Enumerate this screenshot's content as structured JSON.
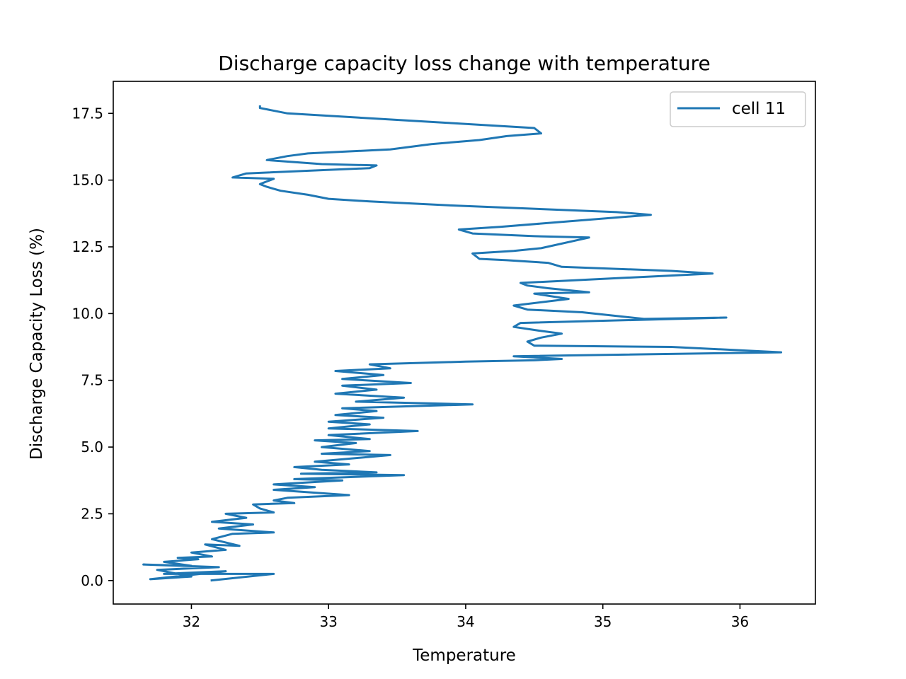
{
  "chart_data": {
    "type": "line",
    "title": "Discharge capacity loss change with temperature",
    "xlabel": "Temperature",
    "ylabel": "Discharge Capacity Loss (%)",
    "xlim": [
      31.43,
      36.55
    ],
    "ylim": [
      -0.88,
      18.7
    ],
    "xticks": [
      32,
      33,
      34,
      35,
      36
    ],
    "xtick_labels": [
      "32",
      "33",
      "34",
      "35",
      "36"
    ],
    "yticks": [
      0.0,
      2.5,
      5.0,
      7.5,
      10.0,
      12.5,
      15.0,
      17.5
    ],
    "ytick_labels": [
      "0.0",
      "2.5",
      "5.0",
      "7.5",
      "10.0",
      "12.5",
      "15.0",
      "17.5"
    ],
    "grid": false,
    "legend_position": "upper right",
    "series_color": "#1f77b4",
    "series": [
      {
        "name": "cell 11",
        "color": "#1f77b4",
        "points": [
          [
            32.14,
            0.0
          ],
          [
            32.6,
            0.25
          ],
          [
            31.8,
            0.25
          ],
          [
            32.25,
            0.35
          ],
          [
            31.7,
            0.05
          ],
          [
            32.0,
            0.15
          ],
          [
            31.75,
            0.4
          ],
          [
            32.2,
            0.5
          ],
          [
            31.65,
            0.6
          ],
          [
            32.0,
            0.55
          ],
          [
            31.8,
            0.7
          ],
          [
            32.05,
            0.8
          ],
          [
            31.9,
            0.85
          ],
          [
            32.15,
            0.9
          ],
          [
            32.0,
            1.05
          ],
          [
            32.25,
            1.15
          ],
          [
            32.1,
            1.35
          ],
          [
            32.35,
            1.3
          ],
          [
            32.15,
            1.55
          ],
          [
            32.3,
            1.75
          ],
          [
            32.6,
            1.8
          ],
          [
            32.2,
            1.95
          ],
          [
            32.45,
            2.1
          ],
          [
            32.15,
            2.2
          ],
          [
            32.4,
            2.35
          ],
          [
            32.25,
            2.5
          ],
          [
            32.6,
            2.55
          ],
          [
            32.5,
            2.7
          ],
          [
            32.45,
            2.85
          ],
          [
            32.75,
            2.9
          ],
          [
            32.6,
            3.0
          ],
          [
            32.7,
            3.1
          ],
          [
            33.15,
            3.2
          ],
          [
            32.6,
            3.4
          ],
          [
            32.9,
            3.5
          ],
          [
            32.6,
            3.6
          ],
          [
            33.1,
            3.75
          ],
          [
            32.75,
            3.8
          ],
          [
            33.55,
            3.95
          ],
          [
            32.8,
            4.0
          ],
          [
            33.35,
            4.05
          ],
          [
            32.95,
            4.15
          ],
          [
            32.75,
            4.25
          ],
          [
            33.15,
            4.35
          ],
          [
            32.9,
            4.45
          ],
          [
            33.45,
            4.7
          ],
          [
            32.95,
            4.75
          ],
          [
            33.3,
            4.85
          ],
          [
            32.95,
            5.0
          ],
          [
            33.2,
            5.15
          ],
          [
            32.9,
            5.25
          ],
          [
            33.3,
            5.3
          ],
          [
            33.0,
            5.45
          ],
          [
            33.65,
            5.6
          ],
          [
            33.0,
            5.7
          ],
          [
            33.3,
            5.85
          ],
          [
            33.0,
            5.95
          ],
          [
            33.4,
            6.1
          ],
          [
            33.05,
            6.2
          ],
          [
            33.35,
            6.35
          ],
          [
            33.1,
            6.45
          ],
          [
            34.05,
            6.6
          ],
          [
            33.2,
            6.7
          ],
          [
            33.55,
            6.85
          ],
          [
            33.05,
            7.0
          ],
          [
            33.35,
            7.15
          ],
          [
            33.1,
            7.3
          ],
          [
            33.6,
            7.4
          ],
          [
            33.1,
            7.55
          ],
          [
            33.4,
            7.7
          ],
          [
            33.05,
            7.85
          ],
          [
            33.45,
            7.95
          ],
          [
            33.3,
            8.1
          ],
          [
            34.0,
            8.2
          ],
          [
            34.5,
            8.25
          ],
          [
            34.7,
            8.3
          ],
          [
            34.35,
            8.4
          ],
          [
            36.3,
            8.55
          ],
          [
            35.5,
            8.75
          ],
          [
            34.5,
            8.8
          ],
          [
            34.45,
            8.95
          ],
          [
            34.55,
            9.1
          ],
          [
            34.7,
            9.25
          ],
          [
            34.55,
            9.35
          ],
          [
            34.35,
            9.5
          ],
          [
            34.4,
            9.65
          ],
          [
            35.9,
            9.85
          ],
          [
            35.3,
            9.8
          ],
          [
            34.85,
            10.05
          ],
          [
            34.45,
            10.15
          ],
          [
            34.35,
            10.3
          ],
          [
            34.75,
            10.55
          ],
          [
            34.5,
            10.75
          ],
          [
            34.9,
            10.8
          ],
          [
            34.6,
            10.95
          ],
          [
            34.45,
            11.05
          ],
          [
            34.4,
            11.15
          ],
          [
            35.8,
            11.5
          ],
          [
            35.5,
            11.6
          ],
          [
            34.7,
            11.75
          ],
          [
            34.6,
            11.9
          ],
          [
            34.3,
            12.0
          ],
          [
            34.1,
            12.05
          ],
          [
            34.05,
            12.25
          ],
          [
            34.35,
            12.35
          ],
          [
            34.55,
            12.45
          ],
          [
            34.9,
            12.85
          ],
          [
            34.5,
            12.9
          ],
          [
            34.05,
            13.0
          ],
          [
            33.95,
            13.15
          ],
          [
            34.25,
            13.25
          ],
          [
            35.35,
            13.7
          ],
          [
            35.1,
            13.8
          ],
          [
            33.9,
            14.05
          ],
          [
            33.3,
            14.2
          ],
          [
            33.0,
            14.3
          ],
          [
            32.85,
            14.45
          ],
          [
            32.65,
            14.6
          ],
          [
            32.55,
            14.75
          ],
          [
            32.5,
            14.85
          ],
          [
            32.55,
            14.95
          ],
          [
            32.6,
            15.05
          ],
          [
            32.3,
            15.1
          ],
          [
            32.4,
            15.25
          ],
          [
            33.3,
            15.45
          ],
          [
            33.35,
            15.55
          ],
          [
            32.95,
            15.6
          ],
          [
            32.55,
            15.75
          ],
          [
            32.7,
            15.9
          ],
          [
            32.85,
            16.0
          ],
          [
            33.45,
            16.15
          ],
          [
            33.75,
            16.35
          ],
          [
            34.1,
            16.5
          ],
          [
            34.3,
            16.65
          ],
          [
            34.55,
            16.75
          ],
          [
            34.5,
            16.95
          ],
          [
            33.85,
            17.15
          ],
          [
            32.7,
            17.5
          ],
          [
            32.5,
            17.7
          ],
          [
            32.5,
            17.8
          ]
        ]
      }
    ]
  }
}
